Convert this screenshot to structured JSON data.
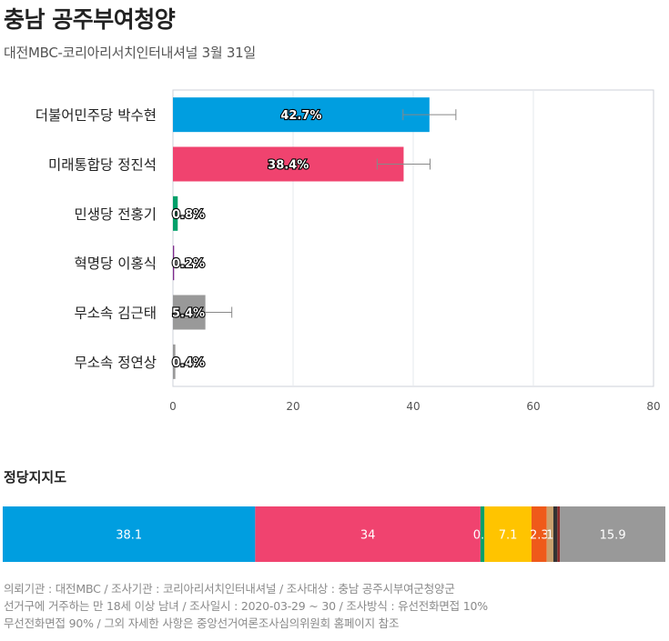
{
  "header": {
    "title": "충남 공주부여청양",
    "subtitle": "대전MBC-코리아리서치인터내셔널 3월 31일"
  },
  "chart_data": [
    {
      "type": "bar",
      "orientation": "horizontal",
      "categories": [
        "더불어민주당 박수현",
        "미래통합당 정진석",
        "민생당 전홍기",
        "혁명당 이홍식",
        "무소속 김근태",
        "무소속 정연상"
      ],
      "values": [
        42.7,
        38.4,
        0.8,
        0.2,
        5.4,
        0.4
      ],
      "value_labels": [
        "42.7%",
        "38.4%",
        "0.8%",
        "0.2%",
        "5.4%",
        "0.4%"
      ],
      "error_margin": [
        4.4,
        4.4,
        0,
        0,
        4.4,
        0
      ],
      "colors": [
        "#009ee0",
        "#f0436f",
        "#00a06a",
        "#7d2a8c",
        "#999999",
        "#999999"
      ],
      "xlim": [
        0,
        80
      ],
      "xticks": [
        "0",
        "20",
        "40",
        "60",
        "80"
      ],
      "grid": true
    },
    {
      "type": "bar",
      "orientation": "stacked-horizontal",
      "title": "정당지지도",
      "values": [
        38.1,
        34,
        0.6,
        7.1,
        2.3,
        1,
        0.6,
        0.4,
        15.9
      ],
      "value_labels": [
        "38.1",
        "34",
        "0.6",
        "7.1",
        "2.3",
        "1",
        "",
        "",
        "15.9"
      ],
      "colors": [
        "#009ee0",
        "#f0436f",
        "#00a06a",
        "#ffc400",
        "#ef5a1a",
        "#c9a16e",
        "#333333",
        "#8a2b2b",
        "#999999"
      ]
    }
  ],
  "footnote": {
    "line1": "의뢰기관 : 대전MBC / 조사기관 : 코리아리서치인터내셔널 / 조사대상 : 충남 공주시부여군청양군",
    "line2": "선거구에 거주하는 만 18세 이상 남녀 / 조사일시 : 2020-03-29 ~ 30 / 조사방식 : 유선전화면접 10%",
    "line3": "무선전화면접 90% / 그외 자세한 사항은 중앙선거여론조사심의위원회 홈페이지 참조"
  }
}
